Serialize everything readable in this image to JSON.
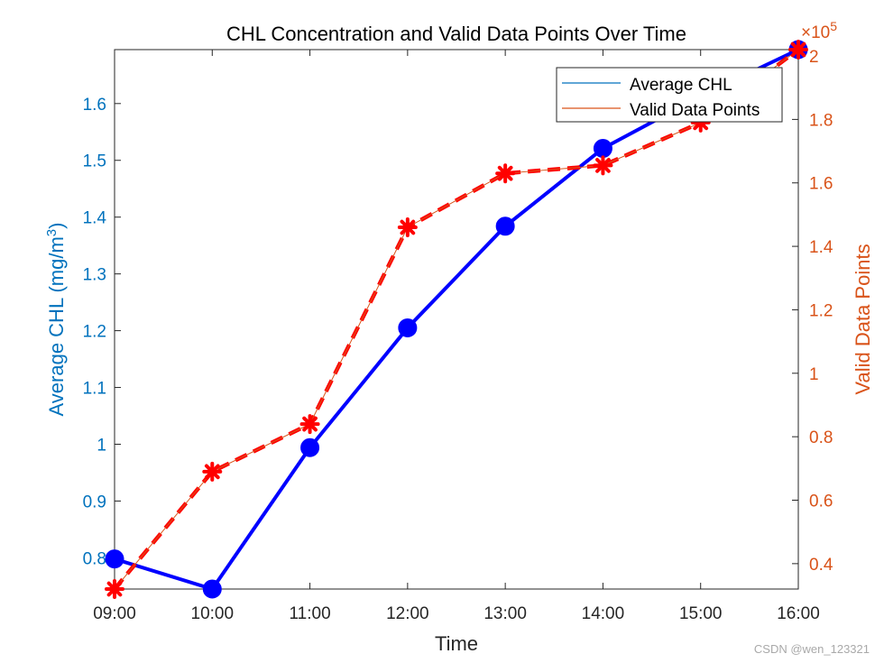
{
  "chart_data": {
    "type": "line",
    "title": "CHL Concentration and Valid Data Points Over Time",
    "xlabel": "Time",
    "categories": [
      "09:00",
      "10:00",
      "11:00",
      "12:00",
      "13:00",
      "14:00",
      "15:00",
      "16:00"
    ],
    "grid": false,
    "legend_position": "top-right",
    "left_axis": {
      "label": "Average CHL (mg/m",
      "label_superscript": "3",
      "label_close": ")",
      "ylim": [
        0.745,
        1.695
      ],
      "ticks": [
        0.8,
        0.9,
        1,
        1.1,
        1.2,
        1.3,
        1.4,
        1.5,
        1.6
      ],
      "tick_labels": [
        "0.8",
        "0.9",
        "1",
        "1.1",
        "1.2",
        "1.3",
        "1.4",
        "1.5",
        "1.6"
      ],
      "color": "#0072BD"
    },
    "right_axis": {
      "label": "Valid Data Points",
      "ylim": [
        0.32,
        2.02
      ],
      "ticks": [
        0.4,
        0.6,
        0.8,
        1,
        1.2,
        1.4,
        1.6,
        1.8,
        2
      ],
      "tick_labels": [
        "0.4",
        "0.6",
        "0.8",
        "1",
        "1.2",
        "1.4",
        "1.6",
        "1.8",
        "2"
      ],
      "exponent_prefix": "×10",
      "exponent_power": "5",
      "color": "#D95319"
    },
    "series": [
      {
        "name": "Average CHL",
        "axis": "left",
        "values": [
          0.798,
          0.745,
          0.994,
          1.205,
          1.384,
          1.521,
          1.613,
          1.695
        ],
        "line_color": "#0000FF",
        "legend_color": "#0072BD",
        "style": "solid",
        "marker": "circle"
      },
      {
        "name": "Valid Data Points",
        "axis": "right",
        "values": [
          0.32,
          0.69,
          0.84,
          1.46,
          1.63,
          1.655,
          1.79,
          2.02
        ],
        "line_color": "#FF0000",
        "inner_line_color": "#D95319",
        "legend_color": "#D95319",
        "style": "dashed",
        "marker": "asterisk"
      }
    ]
  },
  "watermark": "CSDN @wen_123321"
}
